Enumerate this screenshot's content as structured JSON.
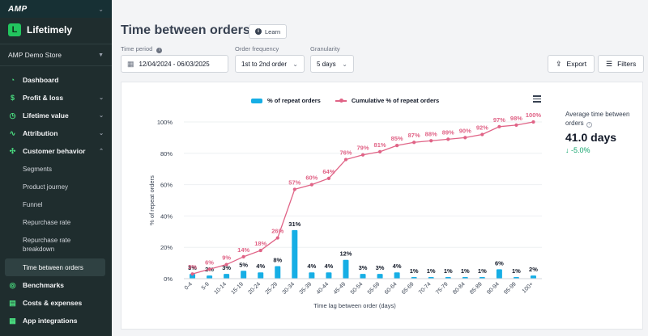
{
  "topbar": {
    "logo": "AMP"
  },
  "brand": {
    "name": "Lifetimely",
    "icon": "L"
  },
  "store": {
    "name": "AMP Demo Store"
  },
  "nav": [
    {
      "label": "Dashboard",
      "icon": "gauge-icon",
      "glyph": "◔",
      "chevron": ""
    },
    {
      "label": "Profit & loss",
      "icon": "dollar-icon",
      "glyph": "$",
      "chevron": "⌄"
    },
    {
      "label": "Lifetime value",
      "icon": "chart-icon",
      "glyph": "◷",
      "chevron": "⌄"
    },
    {
      "label": "Attribution",
      "icon": "pulse-icon",
      "glyph": "∿",
      "chevron": "⌄"
    },
    {
      "label": "Customer behavior",
      "icon": "network-icon",
      "glyph": "✣",
      "chevron": "⌃"
    }
  ],
  "subnav": [
    {
      "label": "Segments"
    },
    {
      "label": "Product journey"
    },
    {
      "label": "Funnel"
    },
    {
      "label": "Repurchase rate"
    },
    {
      "label": "Repurchase rate breakdown"
    },
    {
      "label": "Time between orders"
    }
  ],
  "nav_bottom": [
    {
      "label": "Benchmarks",
      "icon": "compass-icon",
      "glyph": "◎"
    },
    {
      "label": "Costs & expenses",
      "icon": "receipt-icon",
      "glyph": "▤"
    },
    {
      "label": "App integrations",
      "icon": "grid-icon",
      "glyph": "▦"
    }
  ],
  "page": {
    "title": "Time between orders",
    "learn_label": "Learn"
  },
  "filters": {
    "time_period_label": "Time period",
    "time_period_value": "12/04/2024 - 06/03/2025",
    "order_frequency_label": "Order frequency",
    "order_frequency_value": "1st to 2nd order",
    "granularity_label": "Granularity",
    "granularity_value": "5 days"
  },
  "actions": {
    "export_label": "Export",
    "filters_label": "Filters"
  },
  "stat": {
    "label": "Average time between orders",
    "value": "41.0 days",
    "change": "-5.0%"
  },
  "chart_data": {
    "type": "bar",
    "categories": [
      "0-4",
      "5-9",
      "10-14",
      "15-19",
      "20-24",
      "25-29",
      "30-34",
      "35-39",
      "40-44",
      "45-49",
      "50-54",
      "55-59",
      "60-64",
      "65-69",
      "70-74",
      "75-79",
      "80-84",
      "85-89",
      "90-94",
      "95-99",
      "100+"
    ],
    "series": [
      {
        "name": "% of repeat orders",
        "type": "bar",
        "color": "#16aee5",
        "values": [
          3,
          2,
          3,
          5,
          4,
          8,
          31,
          4,
          4,
          12,
          3,
          3,
          4,
          1,
          1,
          1,
          1,
          1,
          6,
          1,
          2
        ],
        "labels": [
          "3%",
          "2%",
          "3%",
          "5%",
          "4%",
          "8%",
          "31%",
          "4%",
          "4%",
          "12%",
          "3%",
          "3%",
          "4%",
          "1%",
          "1%",
          "1%",
          "1%",
          "1%",
          "6%",
          "1%",
          "2%"
        ]
      },
      {
        "name": "Cumulative % of repeat orders",
        "type": "line",
        "color": "#e06386",
        "values": [
          3,
          6,
          9,
          14,
          18,
          26,
          57,
          60,
          64,
          76,
          79,
          81,
          85,
          87,
          88,
          89,
          90,
          92,
          97,
          98,
          100
        ],
        "labels": [
          "3%",
          "6%",
          "9%",
          "14%",
          "18%",
          "26%",
          "57%",
          "60%",
          "64%",
          "76%",
          "79%",
          "81%",
          "85%",
          "87%",
          "88%",
          "89%",
          "90%",
          "92%",
          "97%",
          "98%",
          "100%"
        ]
      }
    ],
    "y_ticks": [
      "0%",
      "20%",
      "40%",
      "60%",
      "80%",
      "100%"
    ],
    "ylabel": "% of repeat orders",
    "xlabel": "Time lag between order (days)",
    "ylim": [
      0,
      100
    ],
    "grid": true,
    "legend": "top-center"
  }
}
